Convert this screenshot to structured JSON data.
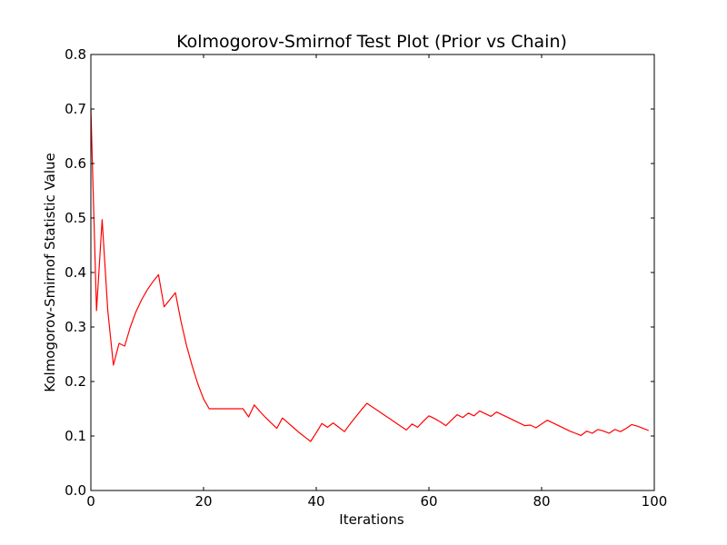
{
  "chart_data": {
    "type": "line",
    "title": "Kolmogorov-Smirnof Test Plot (Prior vs Chain)",
    "xlabel": "Iterations",
    "ylabel": "Kolmogorov-Smirnof Statistic Value",
    "xlim": [
      0,
      100
    ],
    "ylim": [
      0.0,
      0.8
    ],
    "xticks": [
      0,
      20,
      40,
      60,
      80,
      100
    ],
    "xtick_labels": [
      "0",
      "20",
      "40",
      "60",
      "80",
      "100"
    ],
    "yticks": [
      0.0,
      0.1,
      0.2,
      0.3,
      0.4,
      0.5,
      0.6,
      0.7,
      0.8
    ],
    "ytick_labels": [
      "0.0",
      "0.1",
      "0.2",
      "0.3",
      "0.4",
      "0.5",
      "0.6",
      "0.7",
      "0.8"
    ],
    "grid": false,
    "series": [
      {
        "color": "#ff0000",
        "x": [
          0,
          1,
          2,
          3,
          4,
          5,
          6,
          7,
          8,
          9,
          10,
          11,
          12,
          13,
          14,
          15,
          16,
          17,
          18,
          19,
          20,
          21,
          22,
          23,
          24,
          25,
          26,
          27,
          28,
          29,
          30,
          31,
          32,
          33,
          34,
          35,
          36,
          37,
          38,
          39,
          40,
          41,
          42,
          43,
          44,
          45,
          46,
          47,
          48,
          49,
          50,
          51,
          52,
          53,
          54,
          55,
          56,
          57,
          58,
          59,
          60,
          61,
          62,
          63,
          64,
          65,
          66,
          67,
          68,
          69,
          70,
          71,
          72,
          73,
          74,
          75,
          76,
          77,
          78,
          79,
          80,
          81,
          82,
          83,
          84,
          85,
          86,
          87,
          88,
          89,
          90,
          91,
          92,
          93,
          94,
          95,
          96,
          97,
          98,
          99
        ],
        "y": [
          0.7,
          0.33,
          0.497,
          0.33,
          0.23,
          0.27,
          0.265,
          0.3,
          0.328,
          0.35,
          0.368,
          0.383,
          0.396,
          0.337,
          0.35,
          0.363,
          0.31,
          0.265,
          0.228,
          0.195,
          0.168,
          0.15,
          0.15,
          0.15,
          0.15,
          0.15,
          0.15,
          0.15,
          0.135,
          0.157,
          0.145,
          0.134,
          0.124,
          0.114,
          0.133,
          0.124,
          0.115,
          0.106,
          0.098,
          0.09,
          0.106,
          0.123,
          0.116,
          0.124,
          0.116,
          0.108,
          0.122,
          0.135,
          0.148,
          0.16,
          0.153,
          0.146,
          0.139,
          0.132,
          0.125,
          0.118,
          0.111,
          0.122,
          0.116,
          0.127,
          0.137,
          0.132,
          0.126,
          0.119,
          0.129,
          0.139,
          0.134,
          0.142,
          0.137,
          0.146,
          0.141,
          0.136,
          0.144,
          0.139,
          0.134,
          0.129,
          0.124,
          0.119,
          0.12,
          0.115,
          0.122,
          0.129,
          0.124,
          0.119,
          0.114,
          0.109,
          0.105,
          0.101,
          0.109,
          0.105,
          0.112,
          0.109,
          0.105,
          0.112,
          0.108,
          0.114,
          0.121,
          0.118,
          0.114,
          0.11
        ]
      }
    ]
  }
}
